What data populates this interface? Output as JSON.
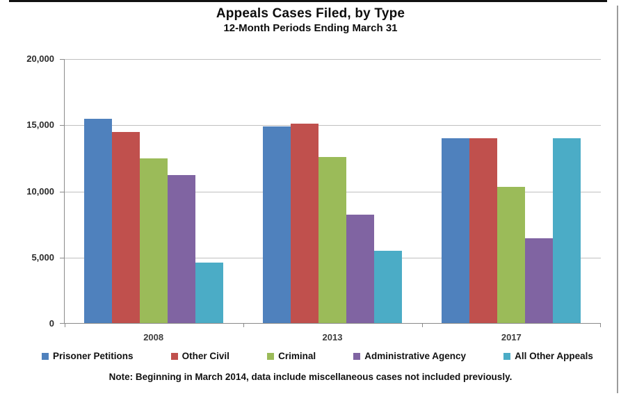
{
  "title": "Appeals Cases Filed, by Type",
  "subtitle": "12-Month Periods Ending March 31",
  "note": "Note: Beginning in March 2014, data include miscellaneous cases not included previously.",
  "chart_data": {
    "type": "bar",
    "categories": [
      "2008",
      "2013",
      "2017"
    ],
    "series": [
      {
        "name": "Prisoner Petitions",
        "color": "#4F81BD",
        "values": [
          15500,
          14900,
          14000
        ]
      },
      {
        "name": "Other Civil",
        "color": "#C0504D",
        "values": [
          14500,
          15100,
          14000
        ]
      },
      {
        "name": "Criminal",
        "color": "#9BBB59",
        "values": [
          12500,
          12600,
          10300
        ]
      },
      {
        "name": "Administrative Agency",
        "color": "#8064A2",
        "values": [
          11200,
          8200,
          6400
        ]
      },
      {
        "name": "All Other Appeals",
        "color": "#4BACC6",
        "values": [
          4600,
          5500,
          14000
        ]
      }
    ],
    "title": "Appeals Cases Filed, by Type",
    "subtitle": "12-Month Periods Ending March 31",
    "xlabel": "",
    "ylabel": "",
    "ylim": [
      0,
      20000
    ],
    "ytick_interval": 5000,
    "ytick_labels": [
      "0",
      "5,000",
      "10,000",
      "15,000",
      "20,000"
    ],
    "grid": true,
    "legend_position": "bottom"
  },
  "colors": {
    "gridline": "#BFBFBF",
    "axis": "#898989",
    "top_border": "#111111",
    "right_border": "#9B9B9B"
  }
}
